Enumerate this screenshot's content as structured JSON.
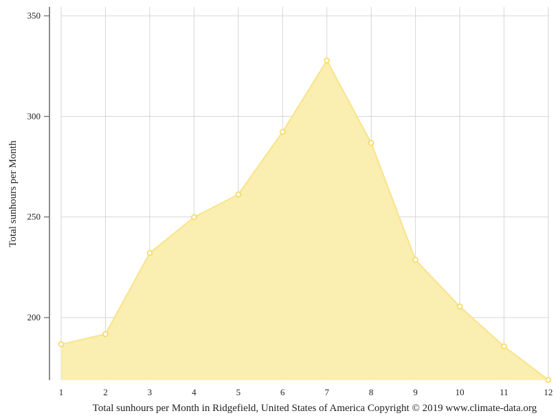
{
  "chart_data": {
    "type": "area",
    "title": "",
    "xlabel": "Total sunhours per Month in Ridgefield, United States of America Copyright © 2019 www.climate-data.org",
    "ylabel": "Total sunhours per Month",
    "categories": [
      "1",
      "2",
      "3",
      "4",
      "5",
      "6",
      "7",
      "8",
      "9",
      "10",
      "11",
      "12"
    ],
    "series": [
      {
        "name": "Sunhours",
        "values": [
          186.7,
          191.8,
          232.1,
          249.9,
          261.2,
          292.3,
          327.8,
          286.8,
          228.7,
          205.5,
          185.7,
          169.0
        ]
      }
    ],
    "yticks": [
      200,
      250,
      300,
      350
    ],
    "ylim": [
      169,
      354.4
    ],
    "grid": true,
    "colors": {
      "fill": "#faeeac",
      "line": "#f9e38a",
      "marker": "#f5d653"
    }
  }
}
